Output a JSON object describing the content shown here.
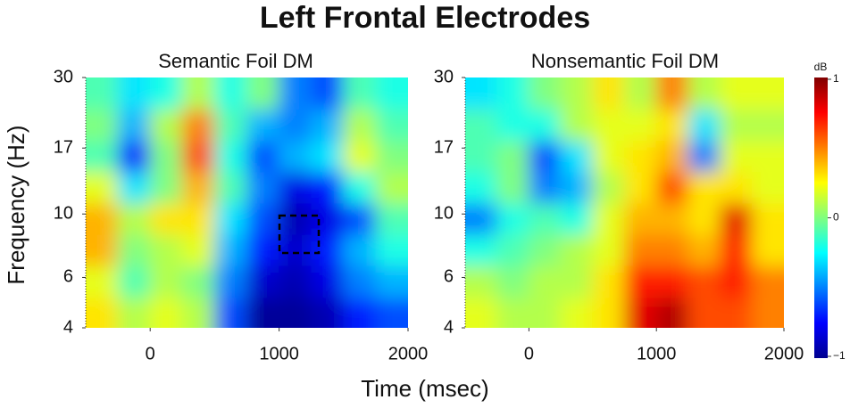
{
  "title": "Left Frontal Electrodes",
  "xlabel": "Time (msec)",
  "ylabel": "Frequency (Hz)",
  "colorbar": {
    "label": "dB",
    "lim": [
      -1,
      1
    ],
    "ticks": [
      1,
      0,
      {
        "value": -1,
        "label": "−1"
      }
    ],
    "colormap": "jet"
  },
  "chart_data": [
    {
      "type": "heatmap",
      "subtitle": "Semantic Foil DM",
      "xlim": [
        -500,
        2000
      ],
      "xticks": [
        0,
        1000,
        2000
      ],
      "ylim": [
        4,
        30
      ],
      "yticks": [
        4,
        6,
        10,
        17,
        30
      ],
      "yscale": "log",
      "x": [
        -375,
        -125,
        125,
        375,
        625,
        875,
        1125,
        1375,
        1625,
        1875
      ],
      "y": [
        4.5,
        5.8,
        7.5,
        9.6,
        12.4,
        15.9,
        20.5,
        26.4
      ],
      "z": [
        [
          0.3,
          0.1,
          0.2,
          0.1,
          -0.6,
          -0.95,
          -0.95,
          -0.9,
          -0.7,
          -0.6
        ],
        [
          0.2,
          -0.1,
          0.1,
          0.0,
          -0.5,
          -0.85,
          -0.9,
          -0.8,
          -0.5,
          -0.4
        ],
        [
          0.4,
          0.0,
          0.1,
          0.2,
          -0.4,
          -0.7,
          -0.85,
          -0.7,
          -0.4,
          -0.2
        ],
        [
          0.4,
          0.1,
          0.3,
          0.3,
          -0.3,
          -0.6,
          -0.9,
          -0.8,
          -0.6,
          -0.1
        ],
        [
          0.2,
          -0.3,
          0.0,
          0.4,
          -0.1,
          -0.5,
          -0.8,
          -0.7,
          -0.2,
          0.1
        ],
        [
          -0.1,
          -0.7,
          0.0,
          0.6,
          -0.2,
          -0.6,
          -0.4,
          -0.3,
          0.2,
          0.0
        ],
        [
          0.0,
          -0.4,
          0.1,
          0.5,
          -0.1,
          -0.4,
          -0.5,
          -0.4,
          0.1,
          -0.1
        ],
        [
          -0.1,
          -0.3,
          -0.2,
          0.1,
          -0.2,
          0.0,
          -0.5,
          -0.6,
          -0.1,
          -0.2
        ]
      ]
    },
    {
      "type": "heatmap",
      "subtitle": "Nonsemantic Foil DM",
      "xlim": [
        -500,
        2000
      ],
      "xticks": [
        0,
        1000,
        2000
      ],
      "ylim": [
        4,
        30
      ],
      "yticks": [
        4,
        6,
        10,
        17,
        30
      ],
      "yscale": "log",
      "x": [
        -375,
        -125,
        125,
        375,
        625,
        875,
        1125,
        1375,
        1625,
        1875
      ],
      "y": [
        4.5,
        5.8,
        7.5,
        9.6,
        12.4,
        15.9,
        20.5,
        26.4
      ],
      "z": [
        [
          0.2,
          0.1,
          0.1,
          0.2,
          0.3,
          0.8,
          0.9,
          0.6,
          0.6,
          0.5
        ],
        [
          0.1,
          0.0,
          0.1,
          0.1,
          0.3,
          0.7,
          0.7,
          0.6,
          0.7,
          0.5
        ],
        [
          -0.2,
          -0.1,
          0.0,
          0.1,
          0.2,
          0.5,
          0.5,
          0.4,
          0.7,
          0.3
        ],
        [
          -0.5,
          -0.2,
          -0.1,
          -0.2,
          0.2,
          0.4,
          0.4,
          0.3,
          0.8,
          0.3
        ],
        [
          -0.2,
          0.0,
          -0.5,
          -0.4,
          0.1,
          0.3,
          0.6,
          0.3,
          0.3,
          0.2
        ],
        [
          -0.1,
          0.0,
          -0.6,
          -0.3,
          0.2,
          0.3,
          0.4,
          -0.5,
          0.2,
          0.2
        ],
        [
          -0.1,
          -0.2,
          -0.2,
          0.1,
          0.2,
          0.2,
          0.3,
          -0.3,
          0.1,
          0.1
        ],
        [
          -0.3,
          -0.2,
          0.0,
          0.1,
          0.3,
          0.1,
          0.5,
          0.1,
          0.2,
          0.2
        ]
      ]
    }
  ]
}
